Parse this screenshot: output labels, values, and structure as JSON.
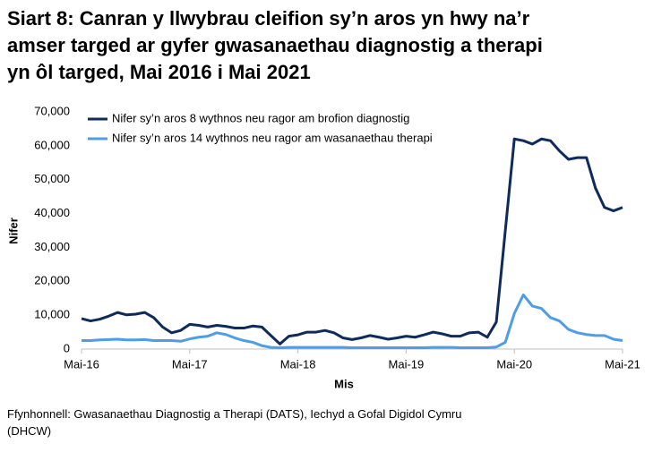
{
  "chart_data": {
    "type": "line",
    "title_lines": [
      "Siart 8: Canran y llwybrau cleifion sy’n aros yn hwy na’r",
      "amser targed ar gyfer gwasanaethau diagnostig a therapi",
      "yn ôl targed, Mai 2016 i Mai 2021"
    ],
    "x_label": "Mis",
    "y_label": "Nifer",
    "source_lines": [
      "Ffynhonnell: Gwasanaethau Diagnostig a Therapi (DATS), Iechyd a Gofal Digidol Cymru",
      "(DHCW)"
    ],
    "categories": [
      "Mai-16",
      null,
      null,
      null,
      null,
      null,
      null,
      null,
      null,
      null,
      null,
      null,
      "Mai-17",
      null,
      null,
      null,
      null,
      null,
      null,
      null,
      null,
      null,
      null,
      null,
      "Mai-18",
      null,
      null,
      null,
      null,
      null,
      null,
      null,
      null,
      null,
      null,
      null,
      "Mai-19",
      null,
      null,
      null,
      null,
      null,
      null,
      null,
      null,
      null,
      null,
      null,
      "Mai-20",
      null,
      null,
      null,
      null,
      null,
      null,
      null,
      null,
      null,
      null,
      null,
      "Mai-21"
    ],
    "series": [
      {
        "name": "Nifer sy’n aros 8 wythnos neu ragor am brofion diagnostig",
        "color": "#0e2b5c",
        "values": [
          9000,
          8300,
          8800,
          9700,
          10800,
          10100,
          10300,
          10800,
          9300,
          6500,
          4800,
          5500,
          7300,
          7000,
          6500,
          7000,
          6700,
          6200,
          6200,
          6800,
          6500,
          4000,
          1500,
          3800,
          4200,
          5000,
          5000,
          5500,
          4800,
          3300,
          2800,
          3300,
          4000,
          3500,
          2900,
          3300,
          3800,
          3500,
          4200,
          5000,
          4500,
          3800,
          3800,
          4800,
          5000,
          3500,
          8000,
          35000,
          62000,
          61500,
          60500,
          62000,
          61500,
          58500,
          56000,
          56500,
          56500,
          47500,
          41800,
          40800,
          41800
        ]
      },
      {
        "name": "Nifer sy’n aros 14 wythnos neu ragor am wasanaethau therapi",
        "color": "#4f9de9",
        "values": [
          2500,
          2500,
          2700,
          2800,
          2900,
          2700,
          2700,
          2800,
          2500,
          2500,
          2500,
          2300,
          3000,
          3500,
          3800,
          4800,
          4300,
          3300,
          2500,
          2000,
          1000,
          500,
          400,
          500,
          500,
          500,
          500,
          500,
          500,
          500,
          400,
          400,
          400,
          400,
          400,
          400,
          400,
          400,
          400,
          500,
          500,
          500,
          400,
          400,
          400,
          400,
          600,
          2000,
          10500,
          16000,
          12700,
          12000,
          9300,
          8300,
          5800,
          4800,
          4300,
          4000,
          4000,
          2900,
          2500
        ]
      }
    ],
    "ylim": [
      0,
      70000
    ],
    "yticks": [
      0,
      {
        "value": 10000,
        "label": "10,000"
      },
      {
        "value": 20000,
        "label": "20,000"
      },
      {
        "value": 30000,
        "label": "30,000"
      },
      {
        "value": 40000,
        "label": "40,000"
      },
      {
        "value": 50000,
        "label": "50,000"
      },
      {
        "value": 60000,
        "label": "60,000"
      },
      {
        "value": 70000,
        "label": "70,000"
      }
    ]
  }
}
